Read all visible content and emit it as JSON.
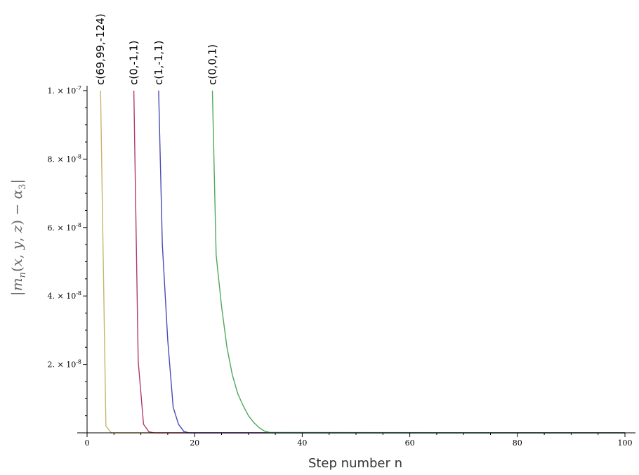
{
  "chart_data": {
    "type": "line",
    "title": "",
    "xlabel": "Step number n",
    "ylabel": "|m_n(x, y, z) − α_3|",
    "xlim": [
      0,
      100
    ],
    "ylim": [
      0,
      1e-07
    ],
    "clip_top": true,
    "grid": false,
    "x_ticks": [
      0,
      20,
      40,
      60,
      80,
      100
    ],
    "x_tick_labels": [
      "0",
      "20",
      "40",
      "60",
      "80",
      "100"
    ],
    "y_ticks": [
      2e-08,
      4e-08,
      6e-08,
      8e-08,
      1e-07
    ],
    "y_tick_labels": [
      {
        "mantissa": "2.",
        "exp": "-8"
      },
      {
        "mantissa": "4.",
        "exp": "-8"
      },
      {
        "mantissa": "6.",
        "exp": "-8"
      },
      {
        "mantissa": "8.",
        "exp": "-8"
      },
      {
        "mantissa": "1.",
        "exp": "-7"
      }
    ],
    "series": [
      {
        "name": "c(69,99,-124)",
        "color": "#c8b46e",
        "x": [
          2.5,
          3.5,
          4.5,
          5.5,
          100
        ],
        "y": [
          1e-07,
          2e-09,
          0,
          0,
          0
        ]
      },
      {
        "name": "c(0,-1,1)",
        "color": "#b03a6e",
        "x": [
          8.7,
          9.5,
          10.5,
          11.5,
          12.5,
          100
        ],
        "y": [
          1e-07,
          2.1e-08,
          2.5e-09,
          3e-10,
          0,
          0
        ]
      },
      {
        "name": "c(1,-1,1)",
        "color": "#4a4ab6",
        "x": [
          13.3,
          14,
          15,
          16,
          17,
          18,
          19,
          100
        ],
        "y": [
          1e-07,
          5.5e-08,
          2.7e-08,
          7.5e-09,
          2.5e-09,
          4e-10,
          0,
          0
        ]
      },
      {
        "name": "c(0,0,1)",
        "color": "#4ea85e",
        "x": [
          23.3,
          24,
          25,
          26,
          27,
          28,
          29,
          30,
          31,
          32,
          33,
          34,
          100
        ],
        "y": [
          1e-07,
          5.2e-08,
          3.7e-08,
          2.5e-08,
          1.7e-08,
          1.15e-08,
          8e-09,
          5e-09,
          3e-09,
          1.5e-09,
          5e-10,
          1e-10,
          0
        ]
      }
    ]
  }
}
